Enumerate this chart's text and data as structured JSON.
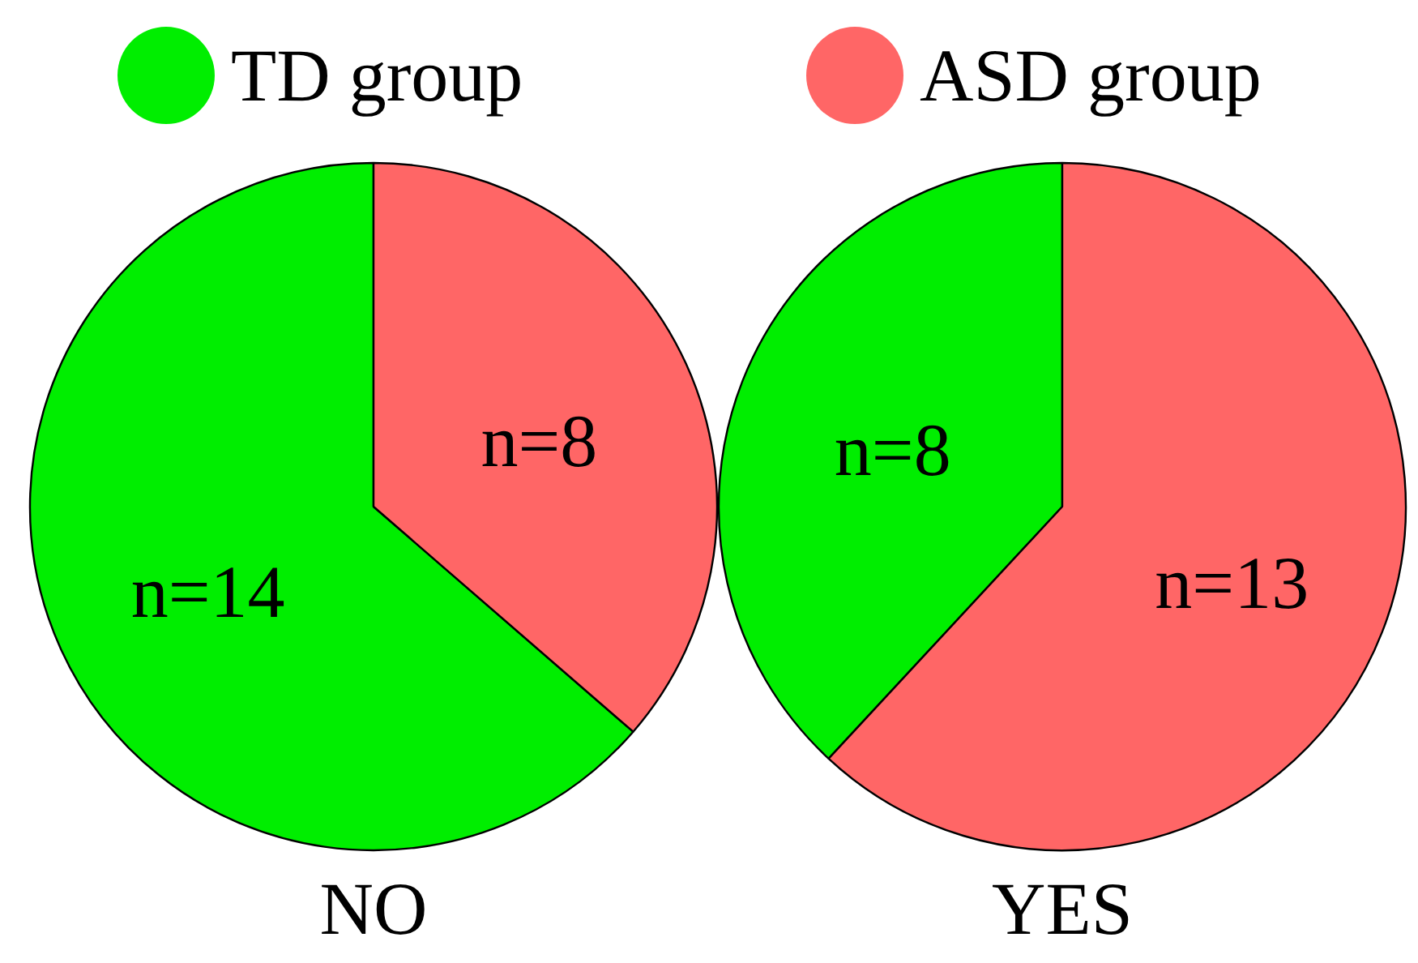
{
  "chart_data": [
    {
      "type": "pie",
      "title": "NO",
      "categories": [
        "TD group",
        "ASD group"
      ],
      "values": [
        14,
        8
      ],
      "colors": [
        "#00ee00",
        "#ff6666"
      ],
      "value_labels": [
        "n=14",
        "n=8"
      ],
      "legend": "top"
    },
    {
      "type": "pie",
      "title": "YES",
      "categories": [
        null,
        null
      ],
      "values": [
        8,
        13
      ],
      "colors": [
        "#00ee00",
        "#ff6666"
      ],
      "value_labels": [
        "n=8",
        "n=13"
      ]
    }
  ]
}
